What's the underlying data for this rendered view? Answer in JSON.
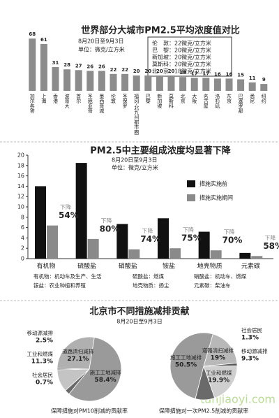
{
  "chart_data": [
    {
      "type": "bar",
      "title": "世界部分大城市PM2.5平均浓度值对比",
      "subtitle": "8月20日至9月3日",
      "unit": "单位：微克/立方米",
      "categories": [
        "加尔各答",
        "上海",
        "香港",
        "波哥大",
        "首尔",
        "圣地亚哥",
        "墨西哥城",
        "伦敦",
        "圣保罗",
        "福冈-北九州都市圈",
        "巴黎",
        "新加坡",
        "莫斯科",
        "北京",
        "大阪",
        "名古屋",
        "洛杉矶",
        "东京",
        "巴塞罗那",
        "悉尼",
        "纽约"
      ],
      "values": [
        68,
        61,
        31,
        28,
        27,
        26,
        26,
        22,
        22,
        20,
        20,
        20,
        20,
        18,
        17,
        17,
        16,
        16,
        15,
        11,
        9
      ],
      "color": "#8c8c8c",
      "callout": [
        "伦　敦：22微克/立方米",
        "巴　黎：20微克/立方米",
        "新加坡：20微克/立方米",
        "莫斯科：20微克/立方米",
        "北　京：18微克/立方米"
      ]
    },
    {
      "type": "grouped_bar",
      "title": "PM2.5中主要组成浓度均显著下降",
      "subtitle": "8月20日至9月3日",
      "unit": "单位：微克/立方米",
      "categories": [
        "有机物",
        "硫酸盐",
        "硝酸盐",
        "铵盐",
        "地壳物质",
        "元素碳"
      ],
      "series": [
        {
          "name": "措施实施前",
          "color": "#111111",
          "values": [
            14,
            18.5,
            6.7,
            7.8,
            5.2,
            1.1
          ]
        },
        {
          "name": "措施实施期间",
          "color": "#8a8a8a",
          "values": [
            6.4,
            3.8,
            1.8,
            2.0,
            1.6,
            0.5
          ]
        }
      ],
      "reduction": {
        "label": "下降",
        "values": [
          54,
          80,
          74,
          75,
          70,
          58
        ],
        "value_labels": [
          "54%",
          "80%",
          "74%",
          "75%",
          "70%",
          "58%"
        ]
      },
      "ylim": [
        0,
        20
      ],
      "yticks": [
        0,
        2,
        4,
        6,
        8,
        10,
        12,
        14,
        16,
        18,
        20
      ],
      "notes": [
        "有机物：机动车及生产、生活",
        "铵盐：农业种植和养殖",
        "硫酸盐：燃煤",
        "地壳物质：扬尘",
        "硝酸盐：机动车、燃煤",
        "元素碳：柴油车"
      ]
    },
    {
      "type": "pie",
      "title": "北京市不同措施减排贡献",
      "subtitle": "8月20日至9月3日",
      "pies": [
        {
          "caption": "保障措施对PM10削减的贡献率",
          "categories": [
            "施工工地减排",
            "移动源减排",
            "工业和燃煤",
            "社会居民",
            "道路清扫减排"
          ],
          "values": [
            58.4,
            2.5,
            11.3,
            0.7,
            27.1
          ],
          "value_labels": [
            "58.4%",
            "2.5%",
            "11.3%",
            "0.7%",
            "27.1%"
          ],
          "colors": [
            "#9a9a9a",
            "#6a6a6a",
            "#c4c4c4",
            "#555555",
            "#b0b0b0"
          ]
        },
        {
          "caption": "保障措施对一次PM2.5削减的贡献率",
          "categories": [
            "施工工地减排",
            "道路清扫减排",
            "社会居民",
            "工业和燃煤",
            "移动源减排"
          ],
          "values": [
            50.5,
            19,
            1.3,
            19.9,
            9.3
          ],
          "value_labels": [
            "50.5%",
            "19%",
            "1.3%",
            "19.9%",
            "9.3%"
          ],
          "colors": [
            "#9a9a9a",
            "#b8b8b8",
            "#555555",
            "#cfcfcf",
            "#6a6a6a"
          ]
        }
      ],
      "watermark": "tanjiaoyi.com"
    }
  ]
}
